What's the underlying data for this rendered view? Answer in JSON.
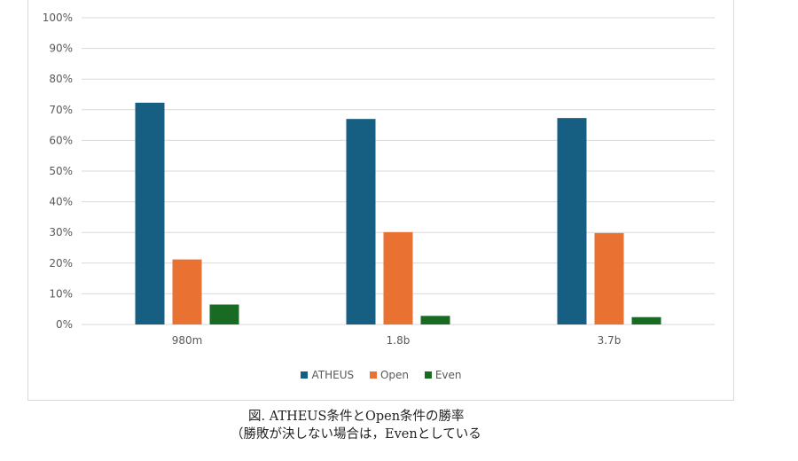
{
  "chart_data": {
    "type": "bar",
    "categories": [
      "980m",
      "1.8b",
      "3.7b"
    ],
    "series": [
      {
        "name": "ATHEUS",
        "color": "#175f82",
        "values": [
          72.3,
          67.0,
          67.3
        ]
      },
      {
        "name": "Open",
        "color": "#e97132",
        "values": [
          21.2,
          30.1,
          29.8
        ]
      },
      {
        "name": "Even",
        "color": "#196b24",
        "values": [
          6.5,
          2.8,
          2.4
        ]
      }
    ],
    "ylim": [
      0,
      100
    ],
    "yticks": [
      "0%",
      "10%",
      "20%",
      "30%",
      "40%",
      "50%",
      "60%",
      "70%",
      "80%",
      "90%",
      "100%"
    ],
    "grid": true,
    "legend": "bottom"
  },
  "caption": {
    "line1": "図. ATHEUS条件とOpen条件の勝率",
    "line2": "（勝敗が決しない場合は，Evenとしている"
  }
}
